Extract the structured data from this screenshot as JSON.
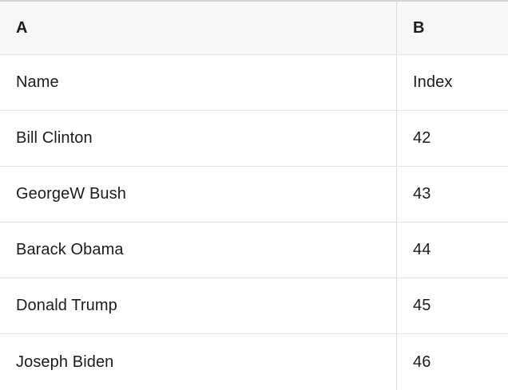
{
  "table": {
    "columns": [
      {
        "label": "A"
      },
      {
        "label": "B"
      }
    ],
    "rows": [
      {
        "a": "Name",
        "b": "Index"
      },
      {
        "a": "Bill Clinton",
        "b": "42"
      },
      {
        "a": "GeorgeW Bush",
        "b": "43"
      },
      {
        "a": "Barack Obama",
        "b": "44"
      },
      {
        "a": "Donald Trump",
        "b": "45"
      },
      {
        "a": "Joseph Biden",
        "b": "46"
      }
    ]
  },
  "colors": {
    "background": "#ffffff",
    "header_background": "#f7f7f7",
    "top_border": "#d2d2d2",
    "gridline": "#e2e2e2",
    "column_divider": "#dcdcdc",
    "text": "#1c1c1e"
  }
}
